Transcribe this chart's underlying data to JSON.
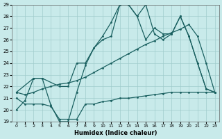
{
  "xlabel": "Humidex (Indice chaleur)",
  "ylabel": "",
  "xlim": [
    -0.5,
    23.5
  ],
  "ylim": [
    19,
    29
  ],
  "xticks": [
    0,
    1,
    2,
    3,
    4,
    5,
    6,
    7,
    8,
    9,
    10,
    11,
    12,
    13,
    14,
    15,
    16,
    17,
    18,
    19,
    20,
    21,
    22,
    23
  ],
  "yticks": [
    19,
    20,
    21,
    22,
    23,
    24,
    25,
    26,
    27,
    28,
    29
  ],
  "bg_color": "#c8eaea",
  "line_color": "#1a6060",
  "grid_color": "#a0cccc",
  "line1_x": [
    0,
    1,
    2,
    3,
    4,
    5,
    6,
    7,
    8,
    9,
    10,
    11,
    12,
    13,
    14,
    15,
    16,
    17,
    18,
    19,
    20,
    21,
    22,
    23
  ],
  "line1_y": [
    20.0,
    20.8,
    22.7,
    22.7,
    20.4,
    19.0,
    19.0,
    21.5,
    23.8,
    25.3,
    26.3,
    27.5,
    29.0,
    29.0,
    28.0,
    29.0,
    26.5,
    26.0,
    26.5,
    28.0,
    26.3,
    24.0,
    21.8,
    21.5
  ],
  "line2_x": [
    0,
    2,
    3,
    5,
    6,
    7,
    8,
    9,
    10,
    11,
    12,
    13,
    14,
    15,
    16,
    17,
    18,
    19,
    20,
    21,
    22,
    23
  ],
  "line2_y": [
    21.5,
    22.7,
    22.7,
    22.0,
    22.0,
    24.0,
    24.0,
    25.3,
    26.0,
    26.3,
    29.0,
    29.0,
    28.0,
    26.0,
    27.0,
    26.5,
    26.5,
    28.0,
    26.3,
    24.0,
    21.8,
    21.5
  ],
  "line3_x": [
    0,
    1,
    2,
    3,
    4,
    5,
    6,
    7,
    8,
    9,
    10,
    11,
    12,
    13,
    14,
    15,
    16,
    17,
    18,
    19,
    20,
    21,
    22,
    23
  ],
  "line3_y": [
    21.5,
    21.3,
    21.5,
    21.8,
    22.0,
    22.2,
    22.3,
    22.5,
    22.8,
    23.2,
    23.6,
    24.0,
    24.4,
    24.8,
    25.2,
    25.6,
    25.9,
    26.3,
    26.6,
    26.9,
    27.3,
    26.3,
    24.0,
    21.5
  ],
  "line4_x": [
    0,
    1,
    2,
    3,
    4,
    5,
    6,
    7,
    8,
    9,
    10,
    11,
    12,
    13,
    14,
    15,
    16,
    17,
    18,
    19,
    20,
    21,
    22,
    23
  ],
  "line4_y": [
    21.0,
    20.5,
    20.5,
    20.5,
    20.3,
    19.2,
    19.2,
    19.2,
    20.5,
    20.5,
    20.7,
    20.8,
    21.0,
    21.0,
    21.1,
    21.2,
    21.3,
    21.4,
    21.5,
    21.5,
    21.5,
    21.5,
    21.5,
    21.5
  ]
}
